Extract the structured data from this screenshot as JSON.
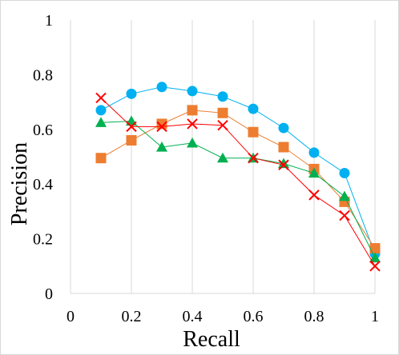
{
  "chart_data": {
    "type": "line",
    "title": "",
    "xlabel": "Recall",
    "ylabel": "Precision",
    "xlim": [
      0,
      1
    ],
    "ylim": [
      0,
      1
    ],
    "x_ticks": [
      "0",
      "0.2",
      "0.4",
      "0.6",
      "0.8",
      "1"
    ],
    "y_ticks": [
      "0",
      "0.2",
      "0.4",
      "0.6",
      "0.8",
      "1"
    ],
    "grid": "vertical",
    "legend": "none",
    "series": [
      {
        "marker": "circle",
        "color": "#00b0f0",
        "x": [
          0.1,
          0.2,
          0.3,
          0.4,
          0.5,
          0.6,
          0.7,
          0.8,
          0.9,
          1.0
        ],
        "y": [
          0.67,
          0.73,
          0.755,
          0.74,
          0.72,
          0.675,
          0.605,
          0.515,
          0.44,
          0.145
        ]
      },
      {
        "marker": "square",
        "color": "#ed7d31",
        "x": [
          0.1,
          0.2,
          0.3,
          0.4,
          0.5,
          0.6,
          0.7,
          0.8,
          0.9,
          1.0
        ],
        "y": [
          0.495,
          0.56,
          0.62,
          0.67,
          0.66,
          0.59,
          0.535,
          0.455,
          0.335,
          0.165
        ]
      },
      {
        "marker": "triangle",
        "color": "#00b050",
        "x": [
          0.1,
          0.2,
          0.3,
          0.4,
          0.5,
          0.6,
          0.7,
          0.8,
          0.9,
          1.0
        ],
        "y": [
          0.625,
          0.63,
          0.535,
          0.55,
          0.495,
          0.495,
          0.475,
          0.44,
          0.355,
          0.13
        ]
      },
      {
        "marker": "x",
        "color": "#ff0000",
        "x": [
          0.1,
          0.2,
          0.3,
          0.4,
          0.5,
          0.6,
          0.7,
          0.8,
          0.9,
          1.0
        ],
        "y": [
          0.715,
          0.61,
          0.61,
          0.62,
          0.615,
          0.495,
          0.47,
          0.36,
          0.285,
          0.1
        ]
      }
    ]
  }
}
